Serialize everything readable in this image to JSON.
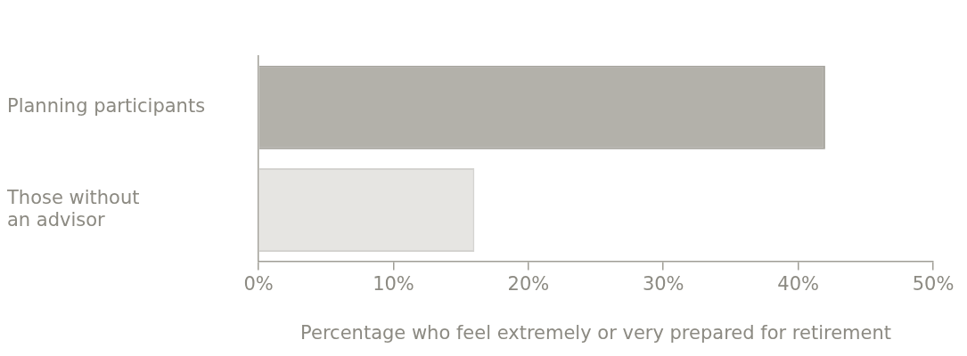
{
  "chart_data": {
    "type": "bar",
    "orientation": "horizontal",
    "categories": [
      "Planning participants",
      "Those without\nan advisor"
    ],
    "values": [
      42,
      16
    ],
    "colors": [
      "#b3b1aa",
      "#e6e5e2"
    ],
    "xlabel": "Percentage who feel extremely or very prepared for retirement",
    "xlim": [
      0,
      50
    ],
    "xticks": [
      {
        "value": 0,
        "label": "0%"
      },
      {
        "value": 10,
        "label": "10%"
      },
      {
        "value": 20,
        "label": "20%"
      },
      {
        "value": 30,
        "label": "30%"
      },
      {
        "value": 40,
        "label": "40%"
      },
      {
        "value": 50,
        "label": "50%"
      }
    ],
    "grid": false,
    "legend": false
  }
}
